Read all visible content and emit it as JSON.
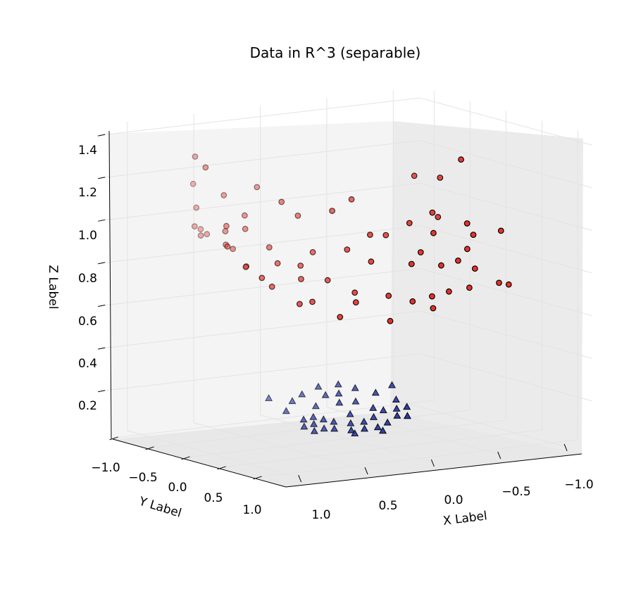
{
  "chart_data": {
    "type": "scatter",
    "projection": "3d",
    "title": "Data in R^3 (separable)",
    "xlabel": "X Label",
    "ylabel": "Y Label",
    "zlabel": "Z Label",
    "xlim": [
      -1.2,
      1.2
    ],
    "ylim": [
      -1.2,
      1.2
    ],
    "zlim": [
      0.0,
      1.45
    ],
    "xticks": [
      1.0,
      0.5,
      0.0,
      -0.5,
      -1.0
    ],
    "xtick_labels": [
      "1.0",
      "0.5",
      "0.0",
      "−0.5",
      "−1.0"
    ],
    "yticks": [
      -1.0,
      -0.5,
      0.0,
      0.5,
      1.0
    ],
    "ytick_labels": [
      "−1.0",
      "−0.5",
      "0.0",
      "0.5",
      "1.0"
    ],
    "zticks": [
      0.2,
      0.4,
      0.6,
      0.8,
      1.0,
      1.2,
      1.4
    ],
    "ztick_labels": [
      "0.2",
      "0.4",
      "0.6",
      "0.8",
      "1.0",
      "1.2",
      "1.4"
    ],
    "grid": true,
    "colors": {
      "class_high": "#e8312a",
      "class_low": "#1f2fa8",
      "edge": "#000000",
      "pane": "#f2f2f2",
      "grid": "#e3e3e3"
    },
    "series": [
      {
        "marker": "circle",
        "color": "#e8312a",
        "points": [
          [
            0.95,
            -0.35,
            1.36
          ],
          [
            0.98,
            -0.15,
            1.33
          ],
          [
            0.83,
            -0.6,
            1.2
          ],
          [
            0.86,
            -0.5,
            1.1
          ],
          [
            0.9,
            -0.45,
            1.02
          ],
          [
            0.88,
            -0.4,
            0.98
          ],
          [
            0.8,
            -0.55,
            0.99
          ],
          [
            0.78,
            -0.5,
            0.97
          ],
          [
            0.85,
            -0.1,
            1.05
          ],
          [
            0.8,
            -0.2,
            0.95
          ],
          [
            0.75,
            -0.3,
            1.0
          ],
          [
            0.72,
            -0.25,
            0.92
          ],
          [
            0.7,
            -0.1,
            0.85
          ],
          [
            0.6,
            -0.3,
            1.0
          ],
          [
            0.55,
            -0.4,
            1.05
          ],
          [
            0.5,
            -0.15,
            0.92
          ],
          [
            0.45,
            0.2,
            0.8
          ],
          [
            0.4,
            0.1,
            0.85
          ],
          [
            0.3,
            -0.35,
            1.1
          ],
          [
            0.25,
            0.2,
            0.78
          ],
          [
            0.2,
            -0.1,
            0.88
          ],
          [
            0.1,
            0.3,
            0.72
          ],
          [
            0.05,
            0.1,
            0.9
          ],
          [
            0.0,
            -0.2,
            1.05
          ],
          [
            -0.05,
            0.25,
            0.85
          ],
          [
            -0.1,
            0.4,
            0.7
          ],
          [
            -0.15,
            0.05,
            0.95
          ],
          [
            -0.2,
            -0.3,
            1.08
          ],
          [
            -0.3,
            0.35,
            0.83
          ],
          [
            -0.35,
            -0.1,
            0.92
          ],
          [
            -0.4,
            0.45,
            0.68
          ],
          [
            -0.45,
            0.2,
            0.86
          ],
          [
            -0.5,
            -0.05,
            0.97
          ],
          [
            -0.55,
            0.3,
            0.8
          ],
          [
            -0.6,
            0.1,
            0.93
          ],
          [
            -0.65,
            0.35,
            0.82
          ],
          [
            -0.7,
            -0.1,
            1.0
          ],
          [
            -0.75,
            0.4,
            0.78
          ],
          [
            -0.8,
            0.2,
            0.85
          ],
          [
            -0.85,
            -0.3,
            0.95
          ],
          [
            -0.9,
            0.1,
            0.9
          ],
          [
            -0.92,
            -0.4,
            1.12
          ],
          [
            -0.95,
            0.5,
            0.7
          ],
          [
            -0.97,
            -0.2,
            1.22
          ],
          [
            -1.0,
            0.3,
            0.93
          ],
          [
            -0.85,
            0.55,
            0.72
          ],
          [
            -0.6,
            0.6,
            0.72
          ],
          [
            -0.3,
            0.65,
            0.65
          ],
          [
            0.05,
            0.7,
            0.62
          ],
          [
            0.4,
            0.65,
            0.66
          ],
          [
            0.65,
            0.55,
            0.73
          ],
          [
            0.88,
            0.45,
            0.86
          ],
          [
            0.92,
            0.3,
            0.9
          ],
          [
            0.95,
            0.1,
            0.98
          ],
          [
            0.5,
            0.45,
            0.72
          ],
          [
            0.2,
            0.5,
            0.7
          ],
          [
            -0.2,
            0.55,
            0.68
          ],
          [
            -0.5,
            0.5,
            0.7
          ],
          [
            0.75,
            0.35,
            0.8
          ],
          [
            0.6,
            0.15,
            0.88
          ],
          [
            -0.78,
            -0.5,
            1.13
          ],
          [
            -0.88,
            0.05,
            0.95
          ],
          [
            0.35,
            -0.6,
            1.15
          ],
          [
            0.68,
            -0.45,
            1.15
          ],
          [
            0.15,
            -0.4,
            1.02
          ]
        ]
      },
      {
        "marker": "triangle",
        "color": "#1f2fa8",
        "points": [
          [
            0.4,
            -0.1,
            0.15
          ],
          [
            0.35,
            0.05,
            0.12
          ],
          [
            0.3,
            0.1,
            0.1
          ],
          [
            0.25,
            0.15,
            0.08
          ],
          [
            0.2,
            0.2,
            0.08
          ],
          [
            0.1,
            0.25,
            0.07
          ],
          [
            0.0,
            0.25,
            0.07
          ],
          [
            -0.1,
            0.25,
            0.07
          ],
          [
            -0.2,
            0.2,
            0.08
          ],
          [
            -0.3,
            0.15,
            0.1
          ],
          [
            -0.35,
            0.05,
            0.12
          ],
          [
            -0.4,
            -0.05,
            0.15
          ],
          [
            0.25,
            0.0,
            0.12
          ],
          [
            0.15,
            0.1,
            0.1
          ],
          [
            0.05,
            0.15,
            0.09
          ],
          [
            -0.05,
            0.15,
            0.09
          ],
          [
            -0.15,
            0.1,
            0.1
          ],
          [
            -0.25,
            0.05,
            0.12
          ],
          [
            0.3,
            -0.2,
            0.18
          ],
          [
            -0.3,
            -0.15,
            0.18
          ],
          [
            0.2,
            -0.25,
            0.2
          ],
          [
            0.05,
            -0.3,
            0.22
          ],
          [
            -0.1,
            -0.3,
            0.22
          ],
          [
            -0.2,
            -0.25,
            0.2
          ],
          [
            0.45,
            -0.25,
            0.2
          ],
          [
            -0.45,
            -0.2,
            0.2
          ],
          [
            0.15,
            -0.15,
            0.15
          ],
          [
            -0.15,
            -0.15,
            0.15
          ],
          [
            0.0,
            -0.1,
            0.16
          ],
          [
            0.35,
            0.2,
            0.08
          ],
          [
            -0.35,
            0.2,
            0.1
          ],
          [
            0.1,
            0.3,
            0.06
          ],
          [
            -0.1,
            0.32,
            0.06
          ],
          [
            0.0,
            0.05,
            0.12
          ],
          [
            0.2,
            0.05,
            0.11
          ],
          [
            -0.2,
            0.0,
            0.13
          ],
          [
            0.4,
            0.15,
            0.1
          ],
          [
            -0.4,
            0.1,
            0.13
          ],
          [
            0.05,
            -0.2,
            0.19
          ],
          [
            -0.05,
            -0.2,
            0.19
          ]
        ]
      }
    ]
  }
}
